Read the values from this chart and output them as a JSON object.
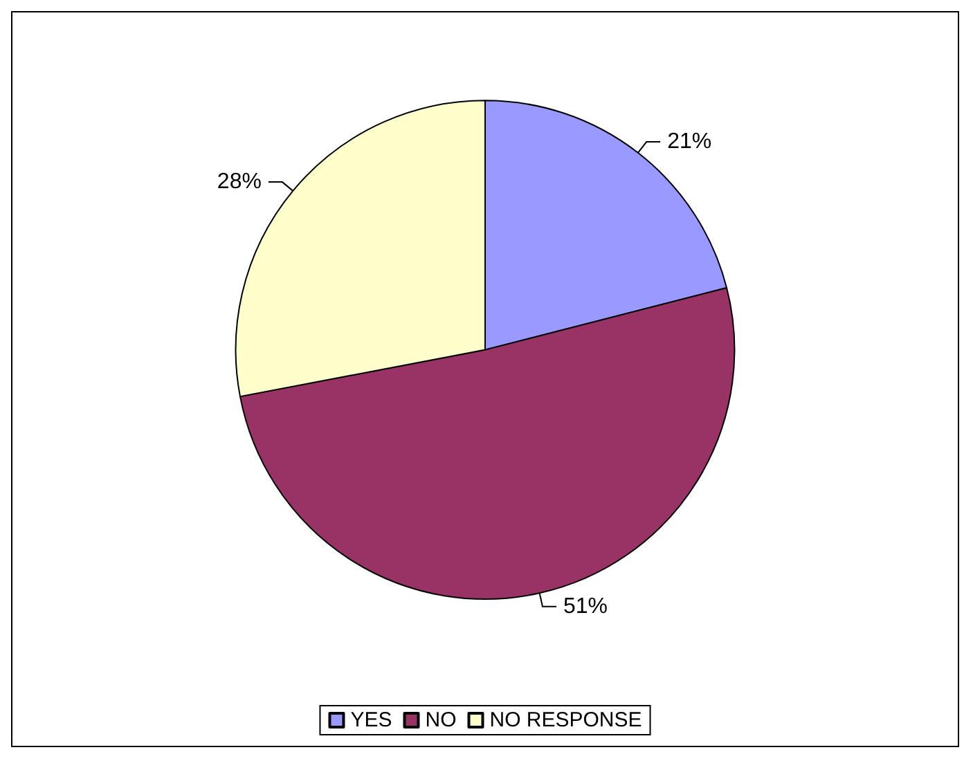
{
  "chart_data": {
    "type": "pie",
    "categories": [
      "YES",
      "NO",
      "NO RESPONSE"
    ],
    "values": [
      21,
      51,
      28
    ],
    "colors": [
      "#9999ff",
      "#993366",
      "#ffffcc"
    ],
    "value_labels": [
      "21%",
      "51%",
      "28%"
    ],
    "legend": "bottom"
  }
}
